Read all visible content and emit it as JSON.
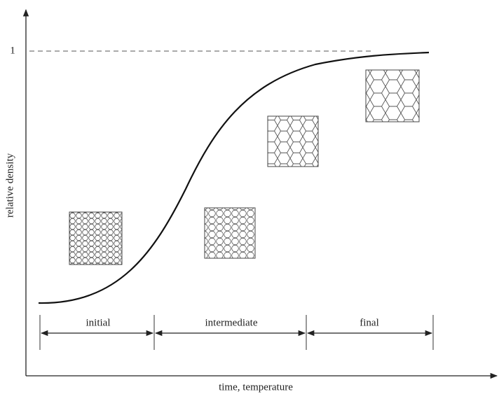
{
  "axes": {
    "y_label": "relative density",
    "x_label": "time, temperature",
    "y_max_label": "1"
  },
  "stages": [
    {
      "label": "initial"
    },
    {
      "label": "intermediate"
    },
    {
      "label": "final"
    }
  ]
}
